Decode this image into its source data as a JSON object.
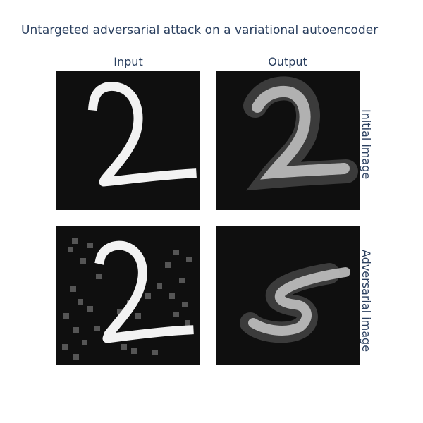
{
  "title": "Untargeted adversarial attack on a variational autoencoder",
  "columns": {
    "input": "Input",
    "output": "Output"
  },
  "rows": {
    "initial": "Initial image",
    "adversarial": "Adversarial image"
  },
  "panels": {
    "initial_input": {
      "digit": "2",
      "style": "sharp"
    },
    "initial_output": {
      "digit": "2",
      "style": "blurred"
    },
    "adversarial_input": {
      "digit": "2",
      "style": "sharp-with-noise"
    },
    "adversarial_output": {
      "digit": "5",
      "style": "blurred"
    }
  },
  "colors": {
    "text": "#2a3f5f",
    "panel_background": "#0f0f0f",
    "stroke": "#f2f2f2",
    "noise": "#555555"
  }
}
